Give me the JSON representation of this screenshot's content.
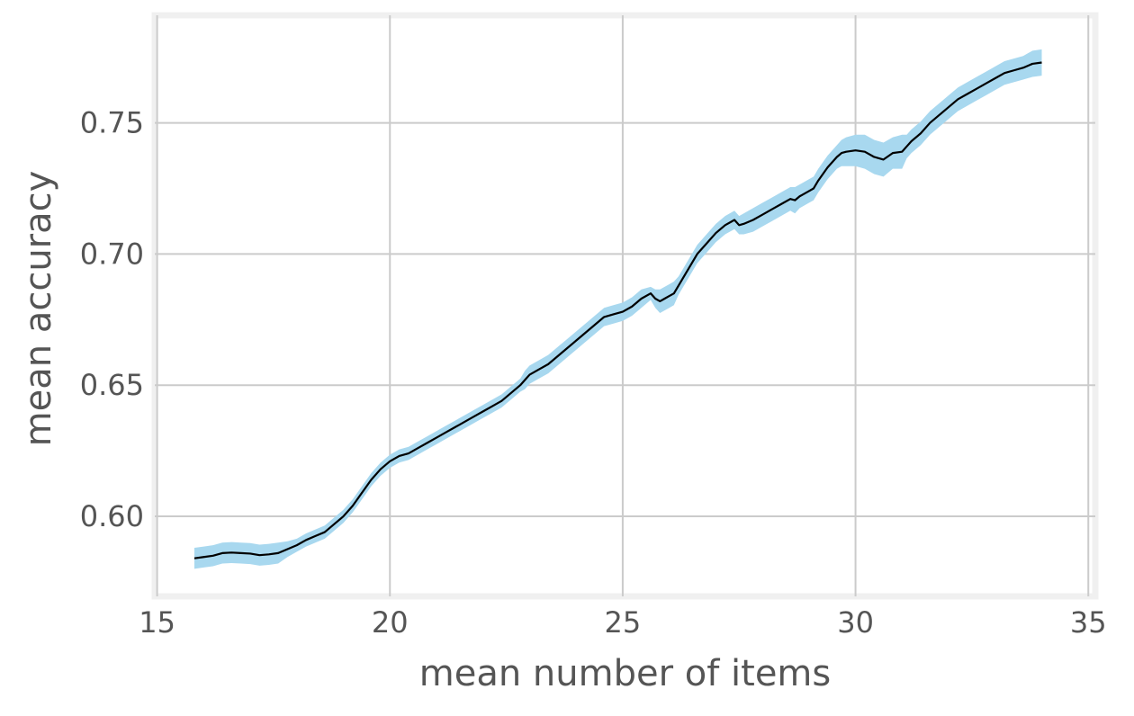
{
  "chart_data": {
    "type": "line",
    "title": "",
    "xlabel": "mean number of items",
    "ylabel": "mean accuracy",
    "xlim": [
      14.95,
      35.15
    ],
    "ylim": [
      0.5695,
      0.791
    ],
    "x_ticks": [
      15,
      20,
      25,
      30,
      35
    ],
    "x_tick_labels": [
      "15",
      "20",
      "25",
      "30",
      "35"
    ],
    "y_ticks": [
      0.6,
      0.65,
      0.7,
      0.75
    ],
    "y_tick_labels": [
      "0.60",
      "0.65",
      "0.70",
      "0.75"
    ],
    "grid": true,
    "legend": "none",
    "colors": {
      "line": "#000000",
      "band": "#a8d8ef",
      "grid": "#cbcbcb",
      "frame": "#f0f0f0",
      "text": "#555555"
    },
    "series": [
      {
        "x": [
          15.8,
          16.0,
          16.2,
          16.4,
          16.6,
          16.8,
          17.0,
          17.2,
          17.4,
          17.6,
          17.8,
          18.0,
          18.2,
          18.4,
          18.6,
          18.8,
          19.0,
          19.2,
          19.4,
          19.6,
          19.8,
          20.0,
          20.2,
          20.4,
          20.6,
          20.8,
          21.0,
          21.2,
          21.4,
          21.6,
          21.8,
          22.0,
          22.2,
          22.4,
          22.6,
          22.8,
          22.9,
          23.0,
          23.2,
          23.4,
          23.6,
          23.8,
          24.0,
          24.2,
          24.4,
          24.6,
          24.8,
          25.0,
          25.2,
          25.4,
          25.6,
          25.7,
          25.8,
          25.9,
          26.0,
          26.1,
          26.2,
          26.4,
          26.6,
          26.8,
          27.0,
          27.2,
          27.4,
          27.5,
          27.6,
          27.8,
          28.0,
          28.2,
          28.4,
          28.6,
          28.7,
          28.8,
          29.0,
          29.1,
          29.2,
          29.4,
          29.6,
          29.7,
          29.8,
          30.0,
          30.2,
          30.4,
          30.6,
          30.8,
          31.0,
          31.1,
          31.2,
          31.4,
          31.6,
          31.8,
          32.0,
          32.2,
          32.4,
          32.6,
          32.8,
          33.0,
          33.2,
          33.4,
          33.6,
          33.8,
          34.0
        ],
        "y": [
          0.584,
          0.5845,
          0.585,
          0.586,
          0.5862,
          0.586,
          0.5858,
          0.5852,
          0.5855,
          0.586,
          0.5875,
          0.589,
          0.591,
          0.5925,
          0.594,
          0.597,
          0.6,
          0.604,
          0.609,
          0.614,
          0.618,
          0.621,
          0.623,
          0.624,
          0.626,
          0.628,
          0.63,
          0.632,
          0.634,
          0.636,
          0.638,
          0.64,
          0.642,
          0.644,
          0.647,
          0.65,
          0.652,
          0.654,
          0.656,
          0.658,
          0.661,
          0.664,
          0.667,
          0.67,
          0.673,
          0.676,
          0.677,
          0.678,
          0.68,
          0.683,
          0.685,
          0.683,
          0.682,
          0.683,
          0.684,
          0.685,
          0.688,
          0.694,
          0.7,
          0.704,
          0.708,
          0.711,
          0.713,
          0.711,
          0.7115,
          0.713,
          0.715,
          0.717,
          0.719,
          0.721,
          0.7205,
          0.722,
          0.724,
          0.725,
          0.728,
          0.733,
          0.737,
          0.7385,
          0.739,
          0.7395,
          0.739,
          0.737,
          0.736,
          0.7385,
          0.739,
          0.741,
          0.743,
          0.746,
          0.75,
          0.753,
          0.756,
          0.759,
          0.761,
          0.763,
          0.765,
          0.767,
          0.769,
          0.77,
          0.771,
          0.7725,
          0.773
        ],
        "lower": [
          0.58,
          0.5805,
          0.581,
          0.582,
          0.5822,
          0.582,
          0.5818,
          0.5812,
          0.5815,
          0.582,
          0.5845,
          0.5865,
          0.5885,
          0.59,
          0.5915,
          0.5945,
          0.5975,
          0.6015,
          0.6065,
          0.6115,
          0.6155,
          0.6185,
          0.6205,
          0.6215,
          0.6235,
          0.6255,
          0.6275,
          0.6295,
          0.6315,
          0.6335,
          0.6355,
          0.6375,
          0.6395,
          0.6415,
          0.6445,
          0.6475,
          0.6485,
          0.6505,
          0.6525,
          0.6545,
          0.6575,
          0.6605,
          0.6635,
          0.6665,
          0.6695,
          0.6725,
          0.6735,
          0.6745,
          0.6765,
          0.6795,
          0.6825,
          0.6795,
          0.6775,
          0.6785,
          0.6795,
          0.6805,
          0.6845,
          0.6905,
          0.6965,
          0.7005,
          0.7045,
          0.7075,
          0.7095,
          0.7075,
          0.7075,
          0.7085,
          0.7105,
          0.7125,
          0.7145,
          0.7165,
          0.7155,
          0.7175,
          0.7195,
          0.7205,
          0.7235,
          0.7285,
          0.7325,
          0.7335,
          0.7335,
          0.7335,
          0.7325,
          0.7305,
          0.7295,
          0.7325,
          0.7325,
          0.7365,
          0.7385,
          0.7415,
          0.7455,
          0.7485,
          0.7515,
          0.7545,
          0.7565,
          0.7585,
          0.7605,
          0.7625,
          0.7645,
          0.7655,
          0.7665,
          0.7675,
          0.768
        ],
        "upper": [
          0.588,
          0.5885,
          0.589,
          0.59,
          0.5902,
          0.59,
          0.5898,
          0.5892,
          0.5895,
          0.59,
          0.5905,
          0.5915,
          0.5935,
          0.595,
          0.5965,
          0.5995,
          0.6025,
          0.6065,
          0.6115,
          0.6165,
          0.6205,
          0.6235,
          0.6255,
          0.6265,
          0.6285,
          0.6305,
          0.6325,
          0.6345,
          0.6365,
          0.6385,
          0.6405,
          0.6425,
          0.6445,
          0.6465,
          0.6495,
          0.6525,
          0.6555,
          0.6575,
          0.6595,
          0.6615,
          0.6645,
          0.6675,
          0.6705,
          0.6735,
          0.6765,
          0.6795,
          0.6805,
          0.6815,
          0.6835,
          0.6865,
          0.6875,
          0.6865,
          0.6865,
          0.6875,
          0.6885,
          0.6895,
          0.6915,
          0.6975,
          0.7035,
          0.7075,
          0.7115,
          0.7145,
          0.7165,
          0.7145,
          0.7155,
          0.7175,
          0.7195,
          0.7215,
          0.7235,
          0.7255,
          0.7255,
          0.7265,
          0.7285,
          0.7295,
          0.7325,
          0.7375,
          0.7415,
          0.7435,
          0.7445,
          0.7455,
          0.7455,
          0.7435,
          0.7425,
          0.7445,
          0.7455,
          0.7455,
          0.7475,
          0.7505,
          0.7545,
          0.7575,
          0.7605,
          0.7635,
          0.7655,
          0.7675,
          0.7695,
          0.7715,
          0.7735,
          0.7745,
          0.7755,
          0.7775,
          0.778
        ]
      }
    ]
  }
}
